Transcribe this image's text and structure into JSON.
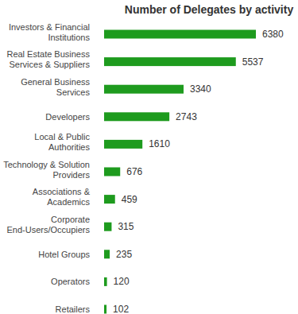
{
  "chart_data": {
    "type": "bar",
    "orientation": "horizontal",
    "title": "Number of Delegates by activity",
    "categories": [
      "Investors & Financial Institutions",
      "Real Estate Business Services & Suppliers",
      "General Business Services",
      "Developers",
      "Local & Public Authorities",
      "Technology & Solution Providers",
      "Associations & Academics",
      "Corporate End-Users/Occupiers",
      "Hotel Groups",
      "Operators",
      "Retailers"
    ],
    "values": [
      6380,
      5537,
      3340,
      2743,
      1610,
      676,
      459,
      315,
      235,
      120,
      102
    ],
    "color": "#1e9b1e",
    "xlim": [
      0,
      6380
    ],
    "data_labels": true,
    "tick_labels": "y",
    "grid": false
  }
}
